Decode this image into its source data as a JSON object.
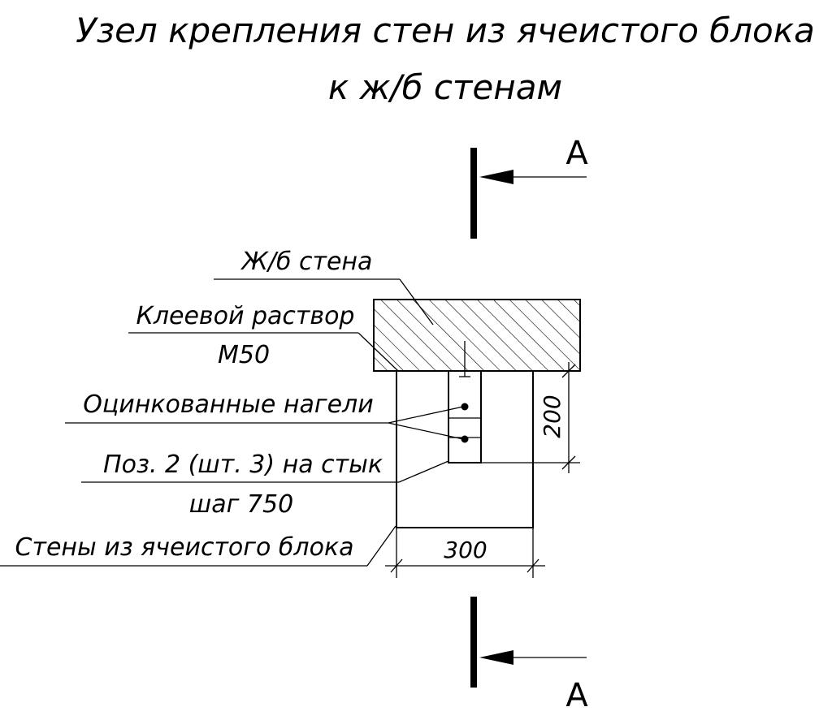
{
  "title": {
    "line1": "Узел крепления стен из ячеистого блока",
    "line2": "к ж/б стенам"
  },
  "section": {
    "top_letter": "А",
    "bottom_letter": "А"
  },
  "labels": {
    "concrete_wall": "Ж/б стена",
    "adhesive_line1": "Клеевой раствор",
    "adhesive_line2": "М50",
    "dowels": "Оцинкованные нагели",
    "position_line1": "Поз. 2 (шт. 3) на стык",
    "position_line2": "шаг 750",
    "block_wall": "Стены из ячеистого блока"
  },
  "dimensions": {
    "width": "300",
    "height": "200"
  }
}
